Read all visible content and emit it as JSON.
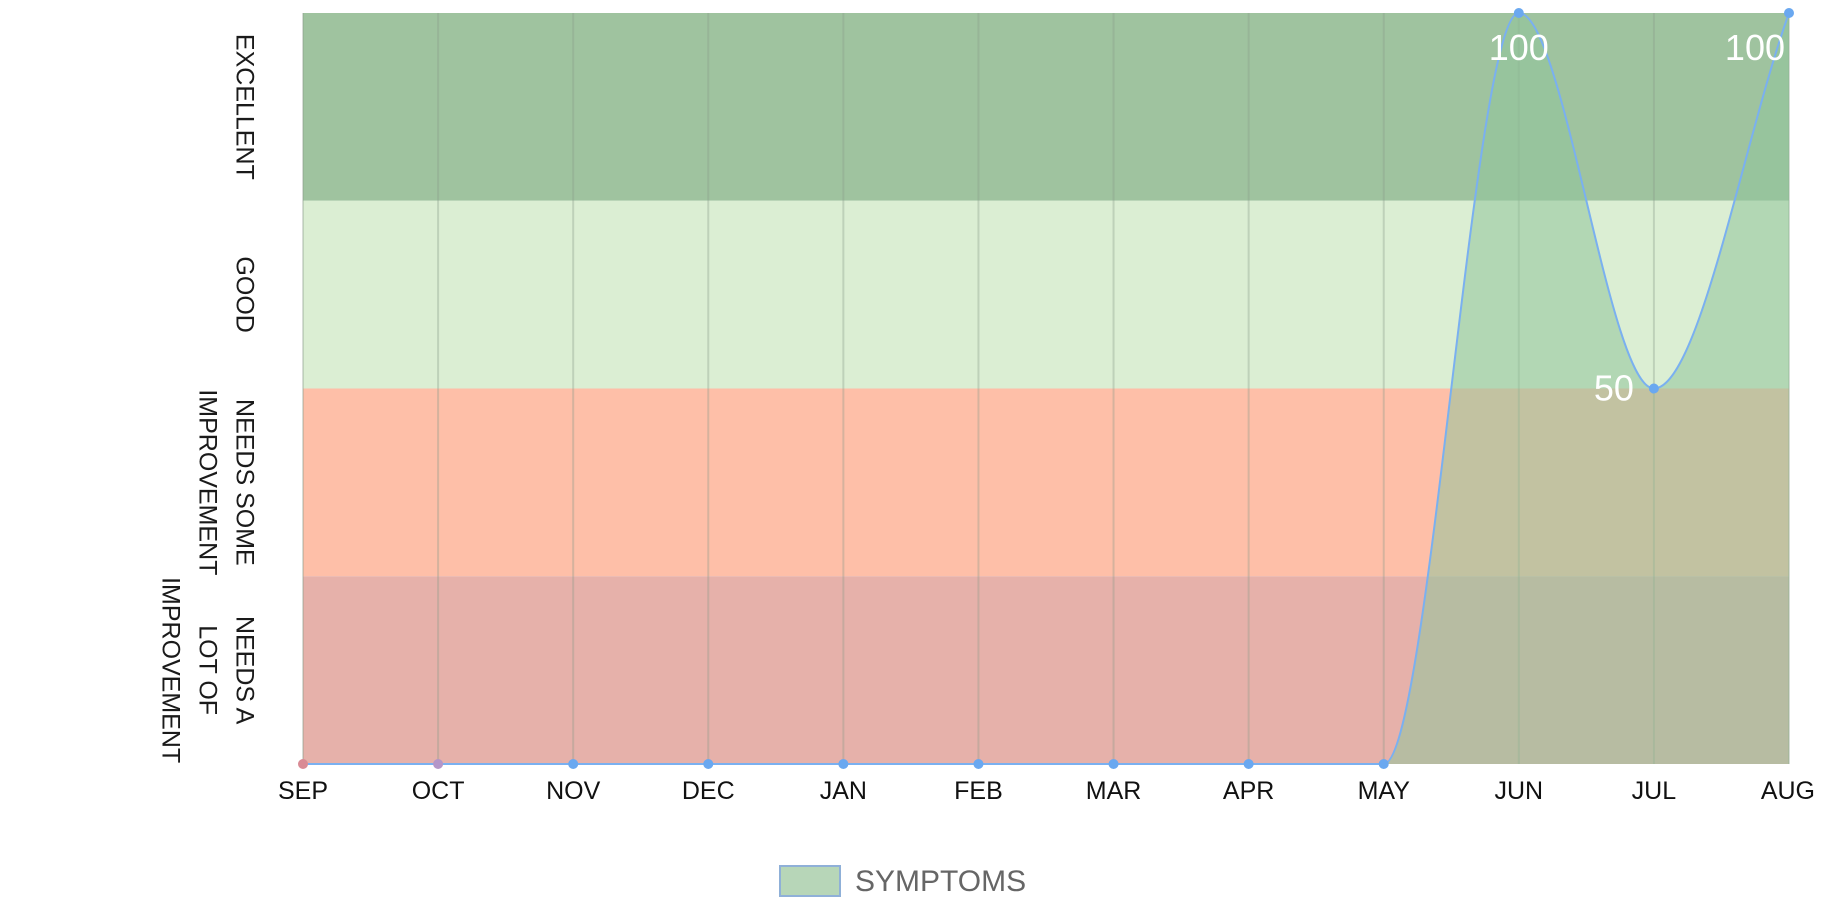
{
  "chart_data": {
    "type": "area",
    "categories": [
      "SEP",
      "OCT",
      "NOV",
      "DEC",
      "JAN",
      "FEB",
      "MAR",
      "APR",
      "MAY",
      "JUN",
      "JUL",
      "AUG"
    ],
    "series": [
      {
        "name": "SYMPTOMS",
        "values": [
          0,
          0,
          0,
          0,
          0,
          0,
          0,
          0,
          0,
          100,
          50,
          100
        ],
        "fill_color": "#8fc49b",
        "line_color": "#7ab0f0",
        "point_color": "#6aa8f0"
      }
    ],
    "ylim": [
      0,
      100
    ],
    "bands": [
      {
        "label": "EXCELLENT",
        "from": 75,
        "to": 100,
        "color": "#9fc39f"
      },
      {
        "label": "GOOD",
        "from": 50,
        "to": 75,
        "color": "#dbeed3"
      },
      {
        "label": "NEEDS SOME IMPROVEMENT",
        "from": 25,
        "to": 50,
        "color": "#febfa8"
      },
      {
        "label": "NEEDS A LOT OF IMPROVEMENT",
        "from": 0,
        "to": 25,
        "color": "#e6b1aa"
      }
    ],
    "data_labels": [
      {
        "index": 9,
        "text": "100"
      },
      {
        "index": 10,
        "text": "50"
      },
      {
        "index": 11,
        "text": "100"
      }
    ],
    "legend": {
      "position": "bottom",
      "label": "SYMPTOMS"
    },
    "grid": {
      "vertical": true,
      "color": "#8a9a8a"
    }
  }
}
